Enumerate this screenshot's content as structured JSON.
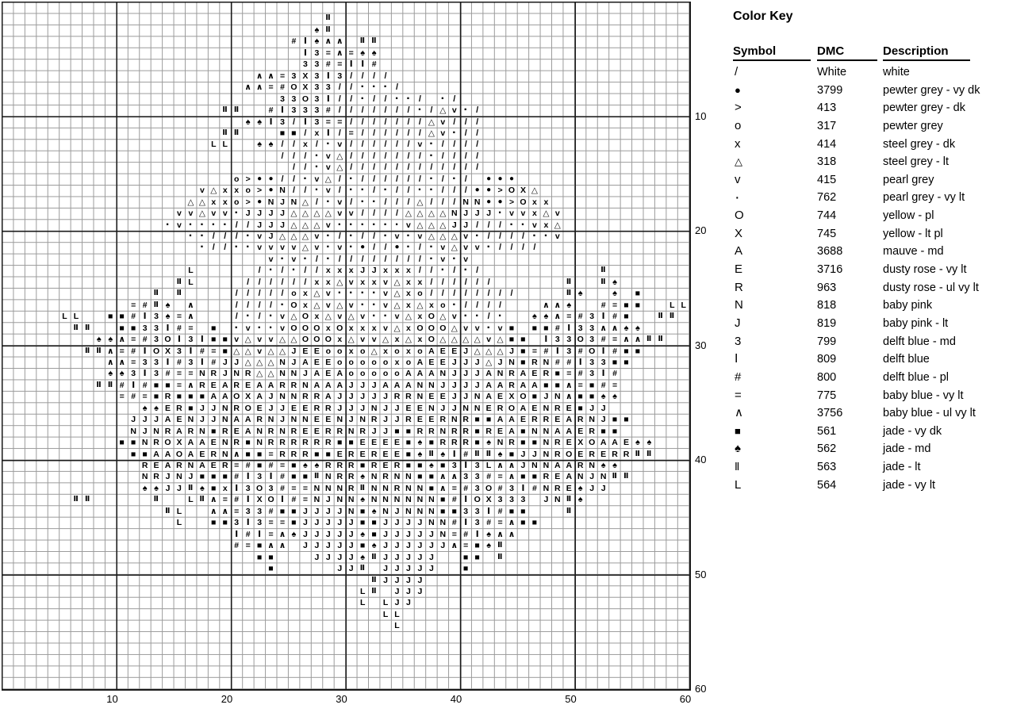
{
  "key": {
    "title": "Color Key",
    "headers": {
      "symbol": "Symbol",
      "dmc": "DMC",
      "description": "Description"
    },
    "rows": [
      {
        "symbol": "/",
        "dmc": "White",
        "description": "white"
      },
      {
        "symbol": "●",
        "dmc": "3799",
        "description": "pewter grey - vy dk"
      },
      {
        "symbol": ">",
        "dmc": "413",
        "description": "pewter grey - dk"
      },
      {
        "symbol": "o",
        "dmc": "317",
        "description": "pewter grey"
      },
      {
        "symbol": "x",
        "dmc": "414",
        "description": "steel grey - dk"
      },
      {
        "symbol": "△",
        "dmc": "318",
        "description": "steel grey - lt"
      },
      {
        "symbol": "v",
        "dmc": "415",
        "description": "pearl grey"
      },
      {
        "symbol": "·",
        "dmc": "762",
        "description": "pearl grey - vy lt"
      },
      {
        "symbol": "O",
        "dmc": "744",
        "description": "yellow - pl"
      },
      {
        "symbol": "X",
        "dmc": "745",
        "description": "yellow - lt pl"
      },
      {
        "symbol": "A",
        "dmc": "3688",
        "description": "mauve - md"
      },
      {
        "symbol": "E",
        "dmc": "3716",
        "description": "dusty rose - vy lt"
      },
      {
        "symbol": "R",
        "dmc": "963",
        "description": "dusty rose - ul vy lt"
      },
      {
        "symbol": "N",
        "dmc": "818",
        "description": "baby pink"
      },
      {
        "symbol": "J",
        "dmc": "819",
        "description": "baby pink - lt"
      },
      {
        "symbol": "3",
        "dmc": "799",
        "description": "delft blue - md"
      },
      {
        "symbol": "|",
        "dmc": "809",
        "description": "delft blue"
      },
      {
        "symbol": "#",
        "dmc": "800",
        "description": "delft blue - pl"
      },
      {
        "symbol": "=",
        "dmc": "775",
        "description": "baby blue - vy lt"
      },
      {
        "symbol": "^",
        "dmc": "3756",
        "description": "baby blue - ul vy lt"
      },
      {
        "symbol": "■",
        "dmc": "561",
        "description": "jade - vy dk"
      },
      {
        "symbol": "♠",
        "dmc": "562",
        "description": "jade - md"
      },
      {
        "symbol": "Ⅱ",
        "dmc": "563",
        "description": "jade - lt"
      },
      {
        "symbol": "L",
        "dmc": "564",
        "description": "jade - vy lt"
      }
    ]
  },
  "chart": {
    "columns": 60,
    "rows": 60,
    "axis_ticks": [
      10,
      20,
      30,
      40,
      50,
      60
    ],
    "axis_labels_bottom": [
      "10",
      "20",
      "30",
      "40",
      "50",
      "60"
    ],
    "axis_labels_right": [
      "10",
      "20",
      "30",
      "40",
      "50",
      "60"
    ],
    "grid": [
      "",
      "                            Ⅱ",
      "                           ♠Ⅱ",
      "                         #|♠^^ ⅡⅡ",
      "                          |3=^=♠♠",
      "                          33#=||#",
      "                      ^^=3X3|3////",
      "                     ^^=#OX33//···/",
      "                        33O3|//·//··/ ·/",
      "                   ⅡⅡ  #|333#///////·/△v·/",
      "                     ♠♠|3/|3==///////△v///",
      "                   ⅡⅡ   ■■/x|/=//////△v·//",
      "                  LL  ♠♠//x/·v//////v·////",
      "                        ///·v△///////·////",
      "                         //·v△////////////",
      "                    o>●●//·v△/·//////·/·/ ●●●",
      "                 v△xxo>●N//·v/··/·//··///●●>OX△",
      "                △△xxo>●NJN△/·v/··///△///NN●●>Oxx",
      "               vv△vv·JJJJ△△△△vv////△△△△NJJJ·vvx△v",
      "              ·v····//JJJ△△△v······v△△△JJ///··vx△",
      "                ··///·vJ△△△v·/·//·v·v△△△v·////··v",
      "                 ·//··vvvv△v·v·●//●·/·v△vv·////",
      "                       v·v·/·////////·v·v",
      "                L     /·/·//xxxJJxxx//·/·/          Ⅱ",
      "               ⅡL    //////xx△vxxv△xx//////      Ⅱ  Ⅱ♠",
      "             Ⅱ Ⅱ    /////ox△v····v△xo////////    Ⅱ♠  ♠ ■",
      "           =#Ⅱ♠ ^   ////·Ox△v△v··v△x△xo·////   ^^♠  #=■■  LL",
      "     LL  ■■#|3♠=^   /·/·v△Ox△v△v··v△xO△v··/·  ♠♠^=#3|#■  ⅡⅡ",
      "      ⅡⅡ  ■■33|#= ■ ·v··vOOOxOxxxv△xOOO△vv·v■ ■■#|33^^♠♠",
      "        ♠♠^=#3O|3|■■v△vv△△OOOx△vv△x△xO△△△△v△■■ |33O3#=^^ⅡⅡ",
      "       ⅡⅡ^=#|OX3|#=■△△v△△JEEooxo△xoxoAEEJ△△△J■=#|3#O|#■■",
      "         ^^=33|#3|#JJ△△△NJAEEoooooxoAEEJJJ△JN■RN##|33■■",
      "         ♠♠3|3#==NRJNR△△NNJAEAoooooAAANJJJANRAER■=#3|#",
      "        ⅡⅡ#|#■■=^REAREAARRNAAAJJJAAANNJJJJAARAA■■^=■#=",
      "          =#=■R■■■AAOXAJNNRRAJJJJJRRNEEJJNAEXO■JN^■■♠♠",
      "            ♠♠ER■JJNROEJJEERRJJJNJJEENJJNNEROAENRE■JJ",
      "           JJJAENJJNAARNJNNEENJNRJJREERNR■■AAERREARNJ■■",
      "           NJNRARN■REANRNREERRNRJJ■■RRNRR■REA■NNAAER■■",
      "          ■■NROXAAENR■NRRRRRR■■EEEE■♠■RRR■♠NR■■NREXOAAE♠♠",
      "           ■■AAOAERN^■■=RRR■■EREREE■♠Ⅱ♠|#ⅡⅡ♠■JJNROERERRⅡⅡ",
      "            REARNAER=#■#=■♠♠RRR■RER■■♠■3|3L^^JNNAARN♠♠",
      "            NRJNJ■■■#|3|#■■ⅡNRR♠NRNN■■^^33#=^■■REANJNⅡⅡ",
      "            ♠♠JJⅡ♠■x|3O3#==NNNRⅡNNRNN■^=#3O#3|#NRE♠JJ",
      "      ⅡⅡ     Ⅱ  LⅡ^=#|XO|#=NJNN♠NNNNNN■#|OX333 JNⅡ♠",
      "              ⅡL  ^^=33#■■JJJJN■♠NJNNN■■33|#■■   Ⅱ",
      "               L  ■■3|3==■JJJJJ■■JJJJNN#|3#=^■■",
      "                    |#|=^♠JJJJJ♠■JJJJJN=#|♠^^",
      "                    #=■^^ JJJJJ■♠JJJJJJ^=■♠Ⅱ",
      "                      ■■   JJJJ♠ⅡJJJJJ  ■■ Ⅱ",
      "                       ■     JJⅡ JJJJJ  ■",
      "                                ⅡJJJJ",
      "                               LⅡ JJJ",
      "                               L LJJ",
      "                                 LL",
      "                                  L",
      "",
      "",
      "",
      "",
      ""
    ]
  }
}
